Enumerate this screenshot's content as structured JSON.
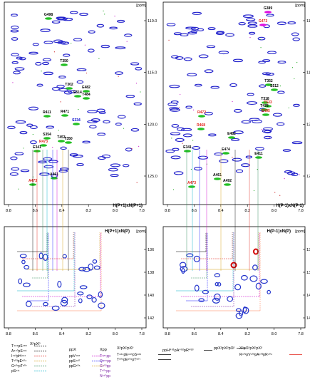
{
  "panels": {
    "top_left": {
      "title": "H(P+1)xN(P+1)",
      "ppm_unit": "[ppm]",
      "y_ticks": [
        "110.0",
        "115.0",
        "120.0",
        "125.0"
      ],
      "x_ticks": [
        "8.8",
        "8.6",
        "8.4",
        "8.2",
        "8.0",
        "7.8"
      ],
      "peaks": [
        {
          "label": "G498",
          "color": "#000000",
          "peak": "green"
        },
        {
          "label": "T350",
          "color": "#000000",
          "peak": "green"
        },
        {
          "label": "T302",
          "color": "#000000",
          "peak": "green"
        },
        {
          "label": "E482",
          "color": "#000000",
          "peak": "green"
        },
        {
          "label": "E514",
          "color": "#000000",
          "peak": "green"
        },
        {
          "label": "T484",
          "color": "#000000",
          "peak": "green"
        },
        {
          "label": "S334",
          "color": "#0000cc",
          "peak": "green"
        },
        {
          "label": "R411",
          "color": "#000000",
          "peak": "green"
        },
        {
          "label": "R471",
          "color": "#000000",
          "peak": "green"
        },
        {
          "label": "S354",
          "color": "#000000",
          "peak": "green"
        },
        {
          "label": "T453",
          "color": "#000000",
          "peak": "green"
        },
        {
          "label": "T350",
          "color": "#000000",
          "peak": "green"
        },
        {
          "label": "R473",
          "color": "#e2231a",
          "peak": "green"
        },
        {
          "label": "E341",
          "color": "#000000",
          "peak": "green"
        },
        {
          "label": "A473",
          "color": "#e2231a",
          "peak": "green"
        },
        {
          "label": "A461",
          "color": "#000000",
          "peak": "green"
        }
      ]
    },
    "top_right": {
      "title": "H(P-1)xN(P-1)",
      "ppm_unit": "[ppm]",
      "y_ticks": [
        "110.0",
        "115.0",
        "120.0",
        "125.0"
      ],
      "x_ticks": [
        "8.8",
        "8.6",
        "8.4",
        "8.2",
        "8.0",
        "7.8"
      ],
      "peaks": [
        {
          "label": "G389",
          "color": "#000000",
          "peak": "magenta"
        },
        {
          "label": "G473",
          "color": "#e2231a",
          "peak": "magenta"
        },
        {
          "label": "T352",
          "color": "#000000",
          "peak": "green"
        },
        {
          "label": "S512",
          "color": "#000000",
          "peak": "green"
        },
        {
          "label": "T318",
          "color": "#000000",
          "peak": "green"
        },
        {
          "label": "T533",
          "color": "#e2231a",
          "peak": "green"
        },
        {
          "label": "T478",
          "color": "#000000",
          "peak": "green"
        },
        {
          "label": "E495",
          "color": "#e2231a",
          "peak": "green"
        },
        {
          "label": "R472",
          "color": "#e2231a",
          "peak": "green"
        },
        {
          "label": "R468",
          "color": "#e2231a",
          "peak": "green"
        },
        {
          "label": "E482",
          "color": "#000000",
          "peak": "green"
        },
        {
          "label": "E474",
          "color": "#000000",
          "peak": "green"
        },
        {
          "label": "E341",
          "color": "#000000",
          "peak": "green"
        },
        {
          "label": "E411",
          "color": "#000000",
          "peak": "green"
        },
        {
          "label": "A461",
          "color": "#000000",
          "peak": "green"
        },
        {
          "label": "A492",
          "color": "#000000",
          "peak": "green"
        },
        {
          "label": "A473",
          "color": "#e2231a",
          "peak": "green"
        }
      ]
    },
    "bottom_left": {
      "title": "H(P+1)xN(P)",
      "ppm_unit": "[ppm]",
      "y_ticks": [
        "136",
        "138",
        "140",
        "142"
      ],
      "x_ticks": [
        "8.8",
        "8.6",
        "8.4",
        "8.2",
        "8.0",
        "7.8"
      ]
    },
    "bottom_right": {
      "title": "H(P-1)xN(P)",
      "ppm_unit": "[ppm]",
      "y_ticks": [
        "136",
        "138",
        "140",
        "142"
      ],
      "x_ticks": [
        "8.8",
        "8.6",
        "8.4",
        "8.2",
        "8.0",
        "7.8"
      ]
    }
  },
  "legend": {
    "col1": {
      "header": "XᵖpXᵖ",
      "rows": [
        {
          "label": "T⁴⁸⁴pS⁴⁸⁵",
          "color": "#000000",
          "style": "dashed"
        },
        {
          "label": "A⁴⁹⁰pS⁴⁹¹",
          "color": "#000000",
          "style": "dashed"
        },
        {
          "label": "I⁴⁹³pH⁴⁹⁴",
          "color": "#e2231a",
          "style": "dashed"
        },
        {
          "label": "T⁵⁰³pE⁵⁰⁴",
          "color": "#d4a017",
          "style": "dashed"
        },
        {
          "label": "G⁵⁰⁶pT⁵⁰⁷",
          "color": "#2e8b57",
          "style": "dashed"
        },
        {
          "label": "pS⁵¹¹",
          "color": "#00b0c8",
          "style": "dashed"
        }
      ]
    },
    "col2": {
      "header": "ppX",
      "rows": [
        {
          "label": "ppV⁴⁸⁸",
          "color": "#cc00cc",
          "style": "dashed"
        },
        {
          "label": "ppS⁴⁹⁰",
          "color": "#1a1aff",
          "style": "dashed"
        },
        {
          "label": "ppG⁵⁰⁶",
          "color": "#d4a017",
          "style": "dashed"
        }
      ]
    },
    "col3": {
      "header": "Xpp",
      "rows": [
        {
          "label": "T⁴⁸⁴pp",
          "color": "#7a1fa2",
          "style": "text"
        },
        {
          "label": "Q⁴⁸⁶pp",
          "color": "#7a1fa2",
          "style": "text"
        },
        {
          "label": "G⁵⁰²pp",
          "color": "#7a1fa2",
          "style": "text"
        },
        {
          "label": "T⁵⁰⁵pp",
          "color": "#7a1fa2",
          "style": "text"
        },
        {
          "label": "N⁵¹⁰pp",
          "color": "#7a1fa2",
          "style": "text"
        }
      ]
    },
    "col4": {
      "header": "XᵖpXᵖpXᵖ",
      "rows": [
        {
          "label": "T⁴⁸⁴pE⁴⁸⁵pS⁴⁸⁶",
          "color": "#000000",
          "style": "solid"
        },
        {
          "label": "T⁵⁰⁵pE⁵⁰⁶pT⁵⁰⁷",
          "color": "#000000",
          "style": "solid"
        }
      ]
    },
    "col5": {
      "header": "ppH⁴⁹¹pA⁴⁹²pR⁴⁹³",
      "rows": []
    },
    "col6": {
      "header": "ppXᵖpXᵖpXᵖ",
      "rows": []
    },
    "col7": {
      "header": "XᵖpXᵖpXᵖpXᵖ",
      "rows": [
        {
          "label": "R⁴⁰¹pV⁴⁰²pA⁴⁰³pR⁴⁰⁴",
          "color": "#e2231a",
          "style": "solid"
        }
      ]
    }
  }
}
